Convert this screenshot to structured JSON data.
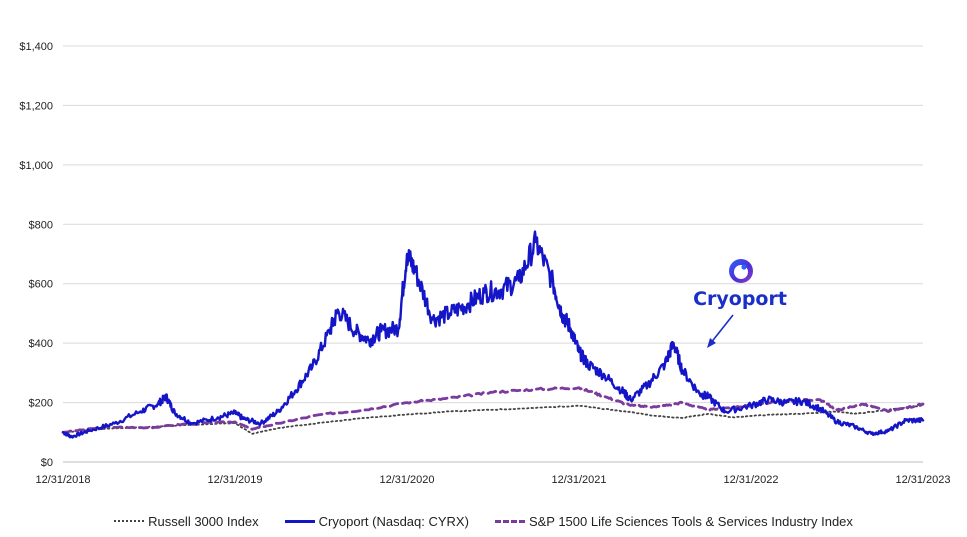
{
  "chart_data": {
    "type": "line",
    "title": "",
    "xlabel": "",
    "ylabel": "",
    "ylim": [
      0,
      1400
    ],
    "y_ticks": [
      "$0",
      "$200",
      "$400",
      "$600",
      "$800",
      "$1,000",
      "$1,200",
      "$1,400"
    ],
    "x_ticks": [
      "12/31/2018",
      "12/31/2019",
      "12/31/2020",
      "12/31/2021",
      "12/31/2022",
      "12/31/2023"
    ],
    "x_range": [
      0,
      5
    ],
    "grid": true,
    "legend_position": "bottom",
    "series": [
      {
        "name": "Russell 3000 Index",
        "style": "dotted",
        "color": "#444444",
        "x": [
          0,
          0.25,
          0.5,
          0.75,
          1.0,
          1.1,
          1.2,
          1.3,
          1.5,
          1.75,
          2.0,
          2.25,
          2.5,
          2.75,
          3.0,
          3.15,
          3.3,
          3.45,
          3.6,
          3.75,
          3.9,
          4.0,
          4.15,
          4.3,
          4.5,
          4.6,
          4.75,
          4.85,
          5.0
        ],
        "values": [
          100,
          112,
          118,
          125,
          131,
          95,
          108,
          118,
          132,
          148,
          160,
          170,
          176,
          182,
          190,
          178,
          168,
          155,
          148,
          162,
          150,
          155,
          160,
          162,
          170,
          162,
          172,
          180,
          190
        ]
      },
      {
        "name": "Cryoport (Nasdaq: CYRX)",
        "style": "solid",
        "color": "#1515c8",
        "x": [
          0,
          0.05,
          0.15,
          0.3,
          0.45,
          0.55,
          0.6,
          0.65,
          0.75,
          0.9,
          1.0,
          1.05,
          1.15,
          1.25,
          1.35,
          1.45,
          1.55,
          1.6,
          1.7,
          1.78,
          1.85,
          1.95,
          2.0,
          2.05,
          2.15,
          2.25,
          2.35,
          2.45,
          2.55,
          2.65,
          2.75,
          2.85,
          2.9,
          2.95,
          3.0,
          3.05,
          3.15,
          3.25,
          3.3,
          3.4,
          3.5,
          3.55,
          3.6,
          3.7,
          3.75,
          3.85,
          4.0,
          4.1,
          4.2,
          4.3,
          4.4,
          4.5,
          4.6,
          4.7,
          4.8,
          4.9,
          5.0
        ],
        "values": [
          100,
          85,
          105,
          130,
          170,
          195,
          220,
          165,
          130,
          150,
          165,
          145,
          130,
          170,
          240,
          320,
          440,
          510,
          440,
          410,
          440,
          450,
          700,
          640,
          480,
          500,
          530,
          570,
          580,
          610,
          740,
          600,
          500,
          450,
          370,
          330,
          290,
          240,
          210,
          260,
          330,
          400,
          310,
          230,
          220,
          170,
          190,
          210,
          200,
          205,
          180,
          135,
          120,
          95,
          105,
          140,
          140
        ]
      },
      {
        "name": "S&P 1500 Life Sciences Tools & Services Industry Index",
        "style": "dashed",
        "color": "#7a3a9e",
        "x": [
          0,
          0.25,
          0.5,
          0.75,
          1.0,
          1.1,
          1.25,
          1.5,
          1.75,
          2.0,
          2.25,
          2.5,
          2.75,
          3.0,
          3.15,
          3.3,
          3.45,
          3.6,
          3.75,
          3.9,
          4.0,
          4.2,
          4.4,
          4.5,
          4.65,
          4.8,
          5.0
        ],
        "values": [
          100,
          118,
          115,
          130,
          135,
          110,
          130,
          160,
          175,
          200,
          215,
          235,
          245,
          250,
          220,
          190,
          185,
          200,
          175,
          185,
          190,
          205,
          210,
          175,
          195,
          170,
          195
        ]
      }
    ]
  },
  "logo": {
    "text": "Cryoport"
  }
}
